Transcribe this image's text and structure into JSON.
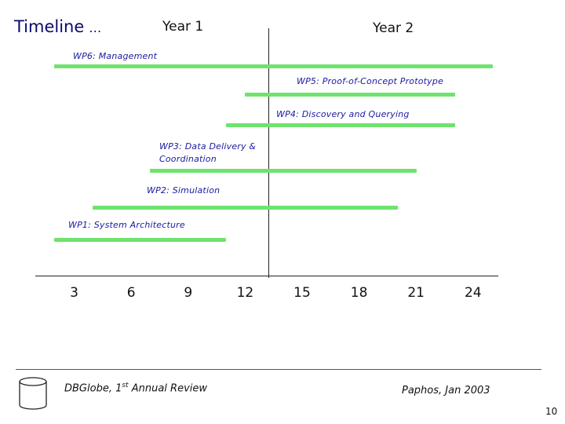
{
  "header": {
    "title": "Timeline",
    "title_suffix": "…",
    "year1": "Year 1",
    "year2": "Year 2"
  },
  "chart_data": {
    "type": "gantt",
    "x_ticks": [
      3,
      6,
      9,
      12,
      15,
      18,
      21,
      24
    ],
    "x_range": [
      0,
      24
    ],
    "tasks": [
      {
        "name": "WP6: Management",
        "start": 1,
        "end": 24
      },
      {
        "name": "WP5: Proof-of-Concept Prototype",
        "start": 11,
        "end": 22
      },
      {
        "name": "WP4: Discovery and Querying",
        "start": 10,
        "end": 22
      },
      {
        "name": "WP3: Data Delivery & Coordination",
        "start": 6,
        "end": 20
      },
      {
        "name": "WP2: Simulation",
        "start": 3,
        "end": 19
      },
      {
        "name": "WP1: System Architecture",
        "start": 1,
        "end": 10
      }
    ],
    "bar_color": "#6fe36f"
  },
  "footer": {
    "left_text": "DBGlobe, 1",
    "left_sup": "st",
    "left_text_after": " Annual Review",
    "right_text": "Paphos, Jan 2003",
    "page_number": "10"
  },
  "icons": {
    "footer_icon": "database-cylinder-icon"
  }
}
